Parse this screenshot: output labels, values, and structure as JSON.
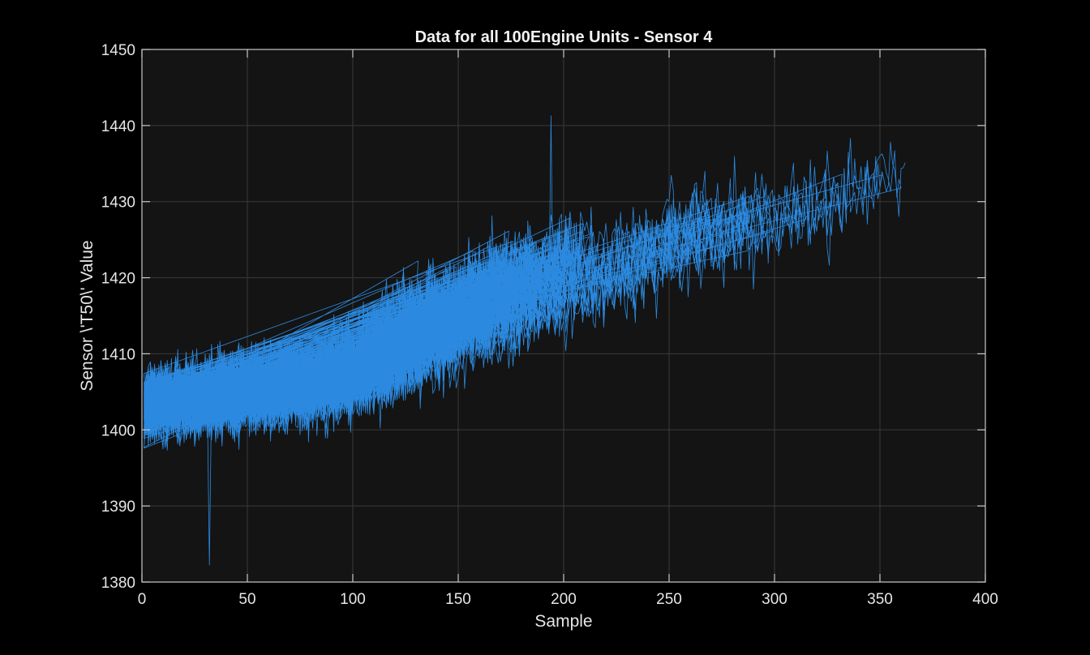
{
  "chart_data": {
    "type": "line",
    "title": "Data for all 100Engine Units - Sensor 4",
    "xlabel": "Sample",
    "ylabel": "Sensor \\'T50\\' Value",
    "xlim": [
      0,
      400
    ],
    "ylim": [
      1380,
      1450
    ],
    "x_ticks": [
      0,
      50,
      100,
      150,
      200,
      250,
      300,
      350,
      400
    ],
    "y_ticks": [
      1380,
      1390,
      1400,
      1410,
      1420,
      1430,
      1440,
      1450
    ],
    "x_tick_labels": [
      "0",
      "50",
      "100",
      "150",
      "200",
      "250",
      "300",
      "350",
      "400"
    ],
    "y_tick_labels": [
      "1380",
      "1390",
      "1400",
      "1410",
      "1420",
      "1430",
      "1440",
      "1450"
    ],
    "grid": true,
    "legend": "none",
    "series_count": 100,
    "series_color": "#2b8ae0",
    "background_color": "#000000",
    "axes_background_color": "#141414",
    "grid_color": "#3a3a3a",
    "axis_color": "#c8c8c8",
    "trend": {
      "x": [
        0,
        50,
        100,
        150,
        200,
        250,
        300,
        350,
        362
      ],
      "y": [
        1403,
        1404.5,
        1407,
        1411.5,
        1417,
        1421,
        1423.5,
        1427,
        1428
      ]
    },
    "noise_amplitude": 4.5,
    "series_length_range": [
      128,
      362
    ],
    "extremes": {
      "max": {
        "x": 194,
        "y": 1441.3
      },
      "min": {
        "x": 32,
        "y": 1382.2
      }
    }
  }
}
